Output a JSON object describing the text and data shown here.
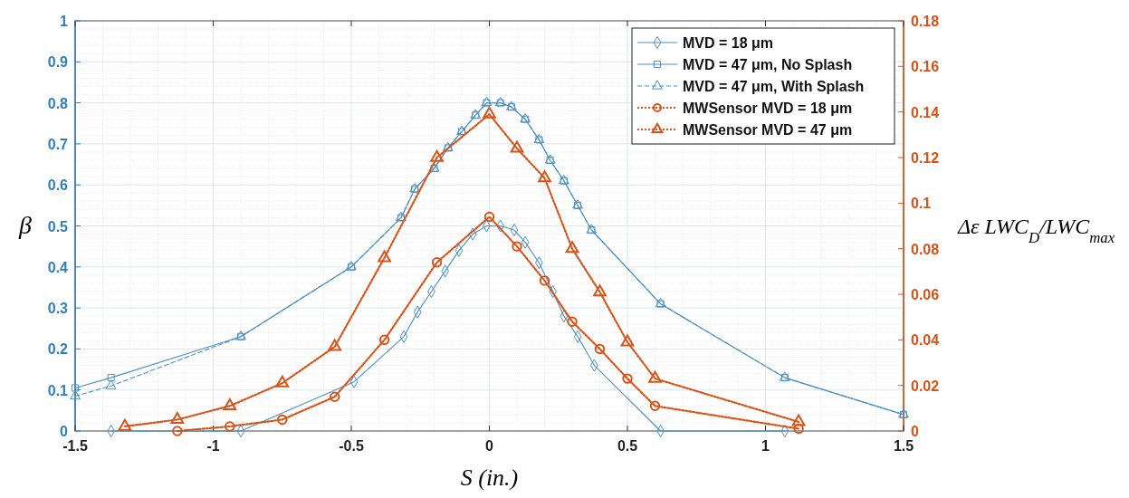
{
  "chart_data": {
    "type": "line",
    "xlabel": "S (in.)",
    "ylabel": "β",
    "y2label": "Δε LWC$_{D}$/LWC$_{max}$",
    "xlim": [
      -1.5,
      1.5
    ],
    "xticks": [
      -1.5,
      -1,
      -0.5,
      0,
      0.5,
      1,
      1.5
    ],
    "ylim": [
      0,
      1
    ],
    "yticks": [
      0,
      0.1,
      0.2,
      0.3,
      0.4,
      0.5,
      0.6,
      0.7,
      0.8,
      0.9,
      1
    ],
    "y2lim": [
      0,
      0.18
    ],
    "y2ticks": [
      0,
      0.02,
      0.04,
      0.06,
      0.08,
      0.1,
      0.12,
      0.14,
      0.16,
      0.18
    ],
    "grid": true,
    "legend": "top right",
    "series": [
      {
        "name": "MVD = 18 μm",
        "color": "#4a90c4",
        "marker": "diamond",
        "line_style": "solid",
        "x": [
          -1.37,
          -0.9,
          -0.49,
          -0.31,
          -0.26,
          -0.21,
          -0.16,
          -0.11,
          -0.06,
          -0.01,
          0.04,
          0.09,
          0.13,
          0.18,
          0.23,
          0.27,
          0.32,
          0.38,
          0.62,
          1.07
        ],
        "values": [
          0,
          0,
          0.12,
          0.23,
          0.29,
          0.34,
          0.39,
          0.44,
          0.48,
          0.5,
          0.5,
          0.49,
          0.46,
          0.41,
          0.34,
          0.28,
          0.23,
          0.16,
          0,
          0
        ]
      },
      {
        "name": "MVD = 47 μm, No Splash",
        "color": "#4a90c4",
        "marker": "square",
        "line_style": "solid",
        "x": [
          -1.5,
          -1.37,
          -0.9,
          -0.5,
          -0.32,
          -0.27,
          -0.2,
          -0.15,
          -0.1,
          -0.05,
          -0.01,
          0.04,
          0.08,
          0.13,
          0.18,
          0.22,
          0.27,
          0.32,
          0.37,
          0.62,
          1.07,
          1.5
        ],
        "values": [
          0.105,
          0.13,
          0.23,
          0.4,
          0.52,
          0.59,
          0.64,
          0.69,
          0.73,
          0.77,
          0.8,
          0.8,
          0.79,
          0.76,
          0.71,
          0.66,
          0.61,
          0.55,
          0.49,
          0.31,
          0.13,
          0.04
        ]
      },
      {
        "name": "MVD = 47 μm, With Splash",
        "color": "#4a90c4",
        "marker": "triangle",
        "line_style": "dashed",
        "x": [
          -1.5,
          -1.37,
          -0.9,
          -0.5,
          -0.32,
          -0.27,
          -0.2,
          -0.15,
          -0.1,
          -0.05,
          -0.01,
          0.04,
          0.08,
          0.13,
          0.18,
          0.22,
          0.27,
          0.32,
          0.37,
          0.62,
          1.07,
          1.5
        ],
        "values": [
          0.085,
          0.11,
          0.23,
          0.4,
          0.52,
          0.59,
          0.64,
          0.69,
          0.73,
          0.77,
          0.8,
          0.8,
          0.79,
          0.76,
          0.71,
          0.66,
          0.61,
          0.55,
          0.49,
          0.31,
          0.13,
          0.04
        ]
      },
      {
        "name": "MWSensor MVD = 18 μm",
        "color": "#d95319",
        "marker": "circle",
        "line_style": "dotted",
        "axis": "y2",
        "x": [
          -1.13,
          -0.94,
          -0.75,
          -0.56,
          -0.38,
          -0.19,
          0,
          0.1,
          0.2,
          0.3,
          0.4,
          0.5,
          0.6,
          1.12
        ],
        "values": [
          0,
          0.002,
          0.005,
          0.015,
          0.04,
          0.074,
          0.094,
          0.081,
          0.066,
          0.048,
          0.036,
          0.023,
          0.011,
          0.001
        ]
      },
      {
        "name": "MWSensor MVD = 47 μm",
        "color": "#d95319",
        "marker": "triangle",
        "line_style": "dotted",
        "axis": "y2",
        "x": [
          -1.32,
          -1.13,
          -0.94,
          -0.75,
          -0.56,
          -0.38,
          -0.19,
          0,
          0.1,
          0.2,
          0.3,
          0.4,
          0.5,
          0.6,
          1.12
        ],
        "values": [
          0.002,
          0.005,
          0.011,
          0.021,
          0.037,
          0.076,
          0.12,
          0.139,
          0.124,
          0.111,
          0.08,
          0.061,
          0.039,
          0.023,
          0.004
        ]
      }
    ]
  }
}
